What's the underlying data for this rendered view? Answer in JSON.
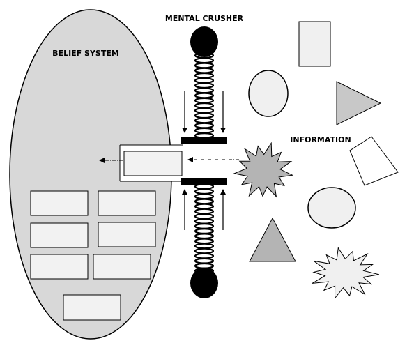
{
  "labels": {
    "mental_crusher": "MENTAL CRUSHER",
    "belief_system": "BELIEF SYSTEM",
    "information": "INFORMATION"
  },
  "colors": {
    "outline": "#000000",
    "belief_fill": "#d8d8d8",
    "box_fill": "#f2f2f2",
    "shape_light": "#f0f0f0",
    "shape_dark": "#b4b4b4",
    "background": "#ffffff"
  }
}
